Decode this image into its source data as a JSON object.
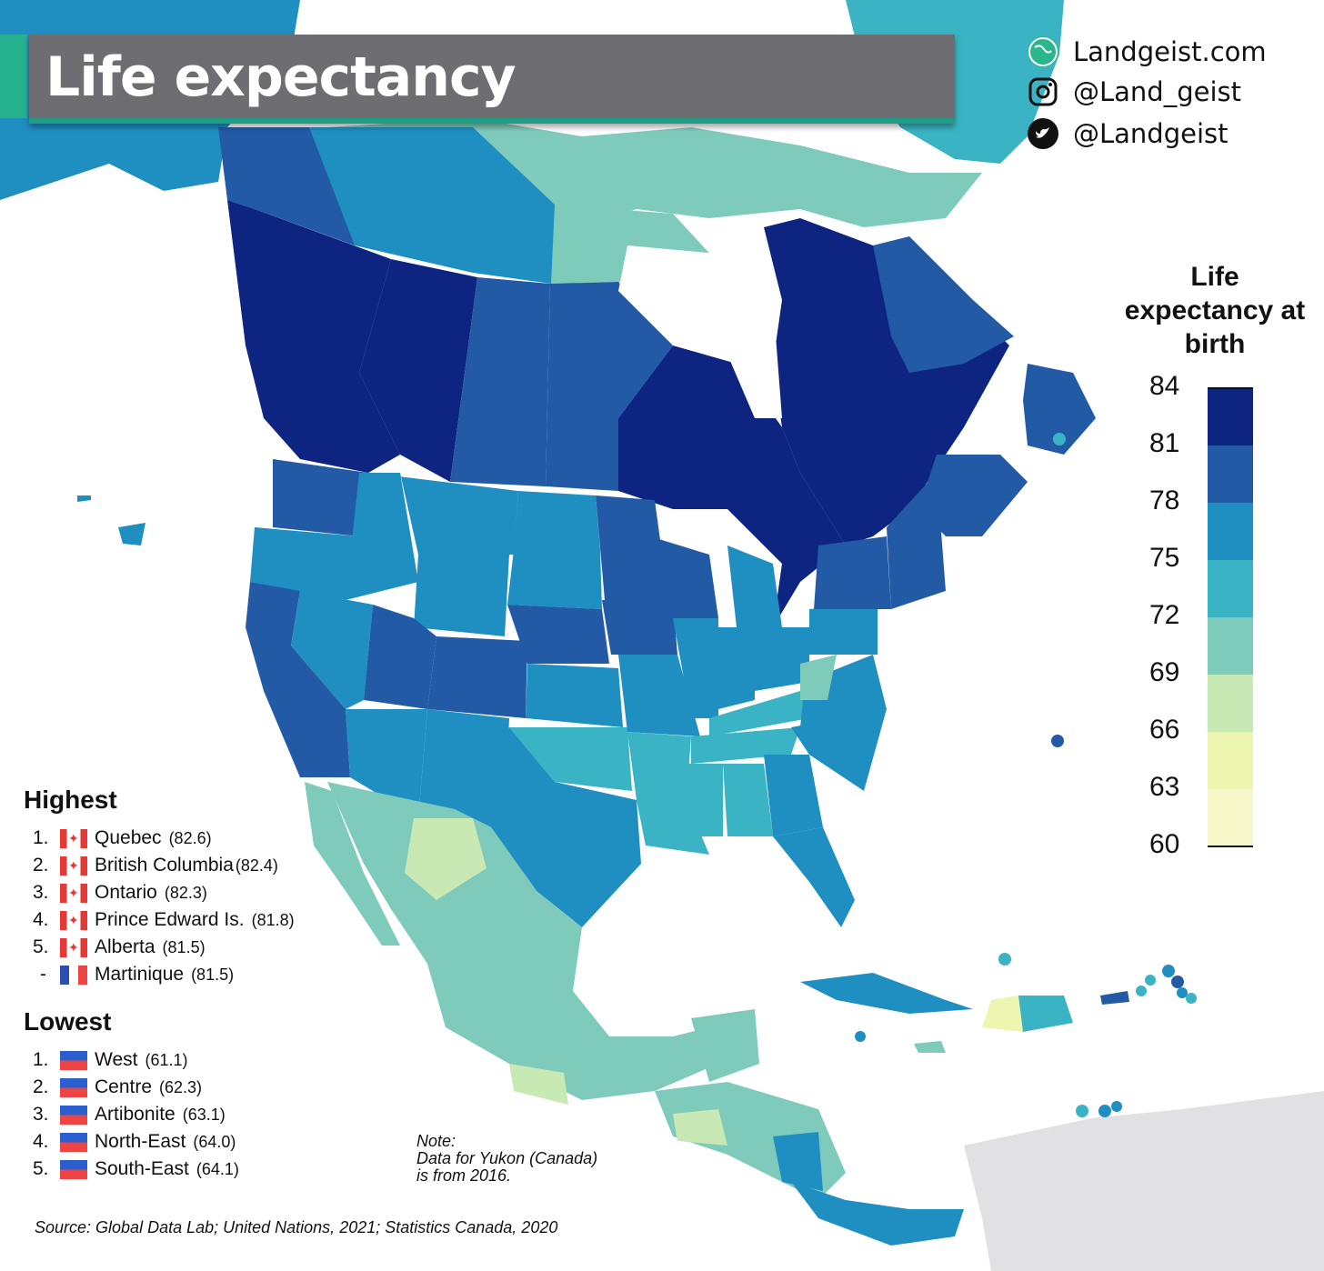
{
  "title": "Life expectancy",
  "social": {
    "website": "Landgeist.com",
    "instagram": "@Land_geist",
    "twitter": "@Landgeist"
  },
  "legend": {
    "title": "Life expectancy at birth",
    "ticks": [
      "84",
      "81",
      "78",
      "75",
      "72",
      "69",
      "66",
      "63",
      "60"
    ],
    "colors": [
      "#0d2580",
      "#235aa6",
      "#1f8fc2",
      "#3ab3c4",
      "#7fcbbb",
      "#c8e8b4",
      "#edf6b0",
      "#f8f7c9"
    ]
  },
  "highest": {
    "heading": "Highest",
    "items": [
      {
        "rank": "1.",
        "flag": "canada",
        "name": "Quebec",
        "value": "(82.6)"
      },
      {
        "rank": "2.",
        "flag": "canada",
        "name": "British Columbia",
        "value": "(82.4)"
      },
      {
        "rank": "3.",
        "flag": "canada",
        "name": "Ontario",
        "value": "(82.3)"
      },
      {
        "rank": "4.",
        "flag": "canada",
        "name": "Prince Edward Is.",
        "value": "(81.8)"
      },
      {
        "rank": "5.",
        "flag": "canada",
        "name": "Alberta",
        "value": "(81.5)"
      },
      {
        "rank": "-",
        "flag": "france",
        "name": "Martinique",
        "value": "(81.5)"
      }
    ]
  },
  "lowest": {
    "heading": "Lowest",
    "items": [
      {
        "rank": "1.",
        "flag": "haiti",
        "name": "West",
        "value": "(61.1)"
      },
      {
        "rank": "2.",
        "flag": "haiti",
        "name": "Centre",
        "value": "(62.3)"
      },
      {
        "rank": "3.",
        "flag": "haiti",
        "name": "Artibonite",
        "value": "(63.1)"
      },
      {
        "rank": "4.",
        "flag": "haiti",
        "name": "North-East",
        "value": "(64.0)"
      },
      {
        "rank": "5.",
        "flag": "haiti",
        "name": "South-East",
        "value": "(64.1)"
      }
    ]
  },
  "note": {
    "label": "Note:",
    "line1": "Data for Yukon (Canada)",
    "line2": "is from 2016."
  },
  "source": "Source: Global Data Lab; United Nations, 2021; Statistics Canada, 2020"
}
